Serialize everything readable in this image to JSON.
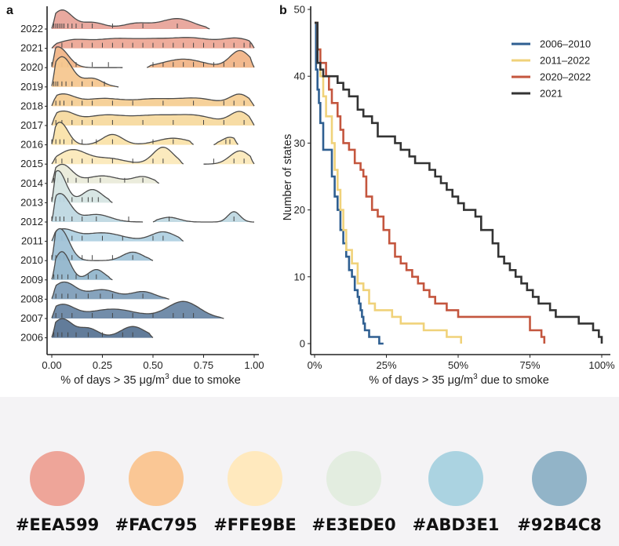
{
  "chart_data": [
    {
      "panel_label": "a",
      "type": "ridgeline",
      "xlabel_pre": "% of days > 35 ",
      "xlabel_mu": "μg/m",
      "xlabel_sup": "3",
      "xlabel_post": " due to smoke",
      "xlim": [
        0,
        1
      ],
      "x_ticks": [
        0,
        0.25,
        0.5,
        0.75,
        1
      ],
      "x_tick_labels": [
        "0.00",
        "0.25",
        "0.50",
        "0.75",
        "1.00"
      ],
      "series": [
        {
          "year": "2022",
          "color": "#E8A49A",
          "peaks": [
            [
              0.05,
              1.0,
              0.05
            ],
            [
              0.2,
              0.35,
              0.06
            ],
            [
              0.42,
              0.3,
              0.07
            ],
            [
              0.62,
              0.55,
              0.08
            ]
          ],
          "range": [
            0,
            0.78
          ],
          "ticks": [
            0.01,
            0.02,
            0.03,
            0.04,
            0.05,
            0.06,
            0.08,
            0.1,
            0.12,
            0.15,
            0.2,
            0.3,
            0.45,
            0.62
          ]
        },
        {
          "year": "2021",
          "color": "#EDA896",
          "peaks": [
            [
              0.1,
              0.4,
              0.08
            ],
            [
              0.3,
              0.45,
              0.1
            ],
            [
              0.5,
              0.4,
              0.1
            ],
            [
              0.7,
              0.5,
              0.1
            ],
            [
              0.92,
              0.5,
              0.08
            ]
          ],
          "range": [
            0,
            1
          ],
          "ticks": [
            0.05,
            0.1,
            0.15,
            0.2,
            0.25,
            0.3,
            0.35,
            0.4,
            0.45,
            0.5,
            0.55,
            0.6,
            0.65,
            0.7,
            0.75,
            0.8,
            0.85,
            0.9,
            0.95,
            0.98
          ]
        },
        {
          "year": "2020",
          "color": "#F1B588",
          "peaks": [
            [
              0.03,
              1.1,
              0.05
            ],
            [
              0.65,
              0.45,
              0.1
            ],
            [
              0.93,
              0.9,
              0.05
            ]
          ],
          "range": [
            0,
            1
          ],
          "gap": [
            0.35,
            0.47
          ],
          "ticks": [
            0.0,
            0.02,
            0.05,
            0.08,
            0.12,
            0.2,
            0.28,
            0.5,
            0.55,
            0.6,
            0.65,
            0.7,
            0.75,
            0.8,
            0.85,
            0.9,
            0.95
          ]
        },
        {
          "year": "2019",
          "color": "#F6C790",
          "peaks": [
            [
              0.05,
              1.6,
              0.05
            ],
            [
              0.2,
              0.45,
              0.05
            ]
          ],
          "range": [
            0,
            0.33
          ],
          "ticks": [
            0.01,
            0.02,
            0.03,
            0.05,
            0.07,
            0.1,
            0.15,
            0.2,
            0.26
          ]
        },
        {
          "year": "2018",
          "color": "#F6CF95",
          "peaks": [
            [
              0.05,
              0.6,
              0.06
            ],
            [
              0.25,
              0.4,
              0.1
            ],
            [
              0.5,
              0.35,
              0.1
            ],
            [
              0.72,
              0.4,
              0.1
            ],
            [
              0.93,
              0.6,
              0.05
            ]
          ],
          "range": [
            0,
            1
          ],
          "ticks": [
            0.02,
            0.04,
            0.06,
            0.1,
            0.15,
            0.2,
            0.3,
            0.4,
            0.55,
            0.7,
            0.85,
            0.9,
            0.95
          ]
        },
        {
          "year": "2017",
          "color": "#F7DAA0",
          "peaks": [
            [
              0.05,
              0.7,
              0.06
            ],
            [
              0.25,
              0.5,
              0.1
            ],
            [
              0.5,
              0.5,
              0.12
            ],
            [
              0.72,
              0.45,
              0.1
            ],
            [
              0.93,
              0.7,
              0.05
            ]
          ],
          "range": [
            0,
            1
          ],
          "ticks": [
            0.02,
            0.05,
            0.1,
            0.15,
            0.2,
            0.3,
            0.45,
            0.6,
            0.75,
            0.85,
            0.95
          ]
        },
        {
          "year": "2016",
          "color": "#FAE3AA",
          "peaks": [
            [
              0.04,
              1.2,
              0.04
            ],
            [
              0.3,
              0.55,
              0.05
            ],
            [
              0.6,
              0.35,
              0.08
            ],
            [
              0.88,
              0.4,
              0.04
            ]
          ],
          "range": [
            0,
            0.92
          ],
          "gap": [
            0.7,
            0.8
          ],
          "ticks": [
            0.0,
            0.02,
            0.04,
            0.06,
            0.1,
            0.15,
            0.22,
            0.3,
            0.5,
            0.6,
            0.86,
            0.88
          ]
        },
        {
          "year": "2015",
          "color": "#FBE9BA",
          "peaks": [
            [
              0.1,
              0.75,
              0.07
            ],
            [
              0.28,
              0.3,
              0.08
            ],
            [
              0.55,
              0.9,
              0.05
            ],
            [
              0.93,
              0.7,
              0.05
            ]
          ],
          "range": [
            0,
            1
          ],
          "gap": [
            0.65,
            0.75
          ],
          "ticks": [
            0.02,
            0.05,
            0.1,
            0.15,
            0.2,
            0.3,
            0.4,
            0.5,
            0.55,
            0.8,
            0.9,
            0.95
          ]
        },
        {
          "year": "2014",
          "color": "#EAEBDA",
          "peaks": [
            [
              0.05,
              1.0,
              0.05
            ],
            [
              0.25,
              0.4,
              0.08
            ],
            [
              0.45,
              0.35,
              0.05
            ]
          ],
          "range": [
            0,
            0.53
          ],
          "ticks": [
            0.01,
            0.03,
            0.05,
            0.08,
            0.12,
            0.18,
            0.24,
            0.36,
            0.45
          ]
        },
        {
          "year": "2013",
          "color": "#D6E5E3",
          "peaks": [
            [
              0.03,
              1.7,
              0.04
            ],
            [
              0.2,
              0.7,
              0.05
            ]
          ],
          "range": [
            0,
            0.3
          ],
          "ticks": [
            0.0,
            0.02,
            0.04,
            0.06,
            0.1,
            0.15,
            0.18,
            0.2,
            0.23
          ]
        },
        {
          "year": "2012",
          "color": "#BFD8E2",
          "peaks": [
            [
              0.04,
              1.5,
              0.05
            ],
            [
              0.22,
              0.4,
              0.07
            ],
            [
              0.58,
              0.25,
              0.05
            ],
            [
              0.9,
              0.55,
              0.03
            ]
          ],
          "range": [
            0,
            1
          ],
          "gap": [
            0.45,
            0.5
          ],
          "ticks": [
            0.0,
            0.02,
            0.04,
            0.06,
            0.1,
            0.15,
            0.22,
            0.38,
            0.58,
            0.9
          ]
        },
        {
          "year": "2011",
          "color": "#B0D1E1",
          "peaks": [
            [
              0.05,
              0.6,
              0.06
            ],
            [
              0.25,
              0.45,
              0.1
            ],
            [
              0.55,
              0.5,
              0.06
            ]
          ],
          "range": [
            0,
            0.65
          ],
          "ticks": [
            0.02,
            0.05,
            0.1,
            0.15,
            0.25,
            0.35,
            0.5,
            0.55
          ]
        },
        {
          "year": "2010",
          "color": "#A1C3D7",
          "peaks": [
            [
              0.04,
              1.7,
              0.045
            ],
            [
              0.4,
              0.45,
              0.05
            ]
          ],
          "range": [
            0,
            0.5
          ],
          "ticks": [
            0.0,
            0.02,
            0.04,
            0.06,
            0.1,
            0.15,
            0.2,
            0.3,
            0.4
          ]
        },
        {
          "year": "2009",
          "color": "#92B6CC",
          "peaks": [
            [
              0.05,
              1.5,
              0.04
            ],
            [
              0.22,
              0.55,
              0.04
            ]
          ],
          "range": [
            0,
            0.3
          ],
          "ticks": [
            0.01,
            0.03,
            0.05,
            0.08,
            0.12,
            0.18,
            0.22
          ]
        },
        {
          "year": "2008",
          "color": "#7F9EB9",
          "peaks": [
            [
              0.06,
              0.9,
              0.06
            ],
            [
              0.25,
              0.5,
              0.07
            ],
            [
              0.45,
              0.4,
              0.06
            ]
          ],
          "range": [
            0,
            0.58
          ],
          "ticks": [
            0.02,
            0.05,
            0.08,
            0.12,
            0.18,
            0.24,
            0.3,
            0.45
          ]
        },
        {
          "year": "2007",
          "color": "#6A87A5",
          "peaks": [
            [
              0.05,
              0.7,
              0.06
            ],
            [
              0.3,
              0.5,
              0.12
            ],
            [
              0.65,
              0.9,
              0.08
            ]
          ],
          "range": [
            0,
            0.85
          ],
          "ticks": [
            0.02,
            0.05,
            0.1,
            0.2,
            0.3,
            0.4,
            0.5,
            0.6,
            0.65,
            0.7
          ]
        },
        {
          "year": "2006",
          "color": "#5A7595",
          "peaks": [
            [
              0.05,
              1.0,
              0.05
            ],
            [
              0.18,
              0.5,
              0.05
            ],
            [
              0.4,
              0.6,
              0.06
            ]
          ],
          "range": [
            0,
            0.5
          ],
          "ticks": [
            0.01,
            0.03,
            0.05,
            0.08,
            0.12,
            0.18,
            0.25,
            0.35,
            0.4
          ]
        }
      ]
    },
    {
      "panel_label": "b",
      "type": "step",
      "xlabel_pre": "% of days > 35 ",
      "xlabel_mu": "μg/m",
      "xlabel_sup": "3",
      "xlabel_post": " due to smoke",
      "ylabel": "Number of states",
      "xlim": [
        0,
        1
      ],
      "ylim": [
        0,
        50
      ],
      "x_ticks": [
        0,
        0.25,
        0.5,
        0.75,
        1
      ],
      "x_tick_labels": [
        "0%",
        "25%",
        "50%",
        "75%",
        "100%"
      ],
      "y_ticks": [
        0,
        10,
        20,
        30,
        40,
        50
      ],
      "y_tick_labels": [
        "0",
        "10",
        "20",
        "30",
        "40",
        "50"
      ],
      "series": [
        {
          "name": "2006–2010",
          "color": "#2F5F91",
          "x": [
            0.0,
            0.005,
            0.01,
            0.015,
            0.02,
            0.03,
            0.04,
            0.06,
            0.07,
            0.08,
            0.09,
            0.1,
            0.11,
            0.12,
            0.13,
            0.14,
            0.15,
            0.155,
            0.16,
            0.165,
            0.17,
            0.175,
            0.18,
            0.19,
            0.2,
            0.21,
            0.225,
            0.24
          ],
          "y": [
            48,
            41,
            38,
            36,
            33,
            29,
            29,
            25,
            22,
            20,
            17,
            15,
            13,
            11,
            10,
            8,
            7,
            6,
            5,
            4,
            3,
            2,
            2,
            1,
            1,
            1,
            0,
            0
          ]
        },
        {
          "name": "2011–2022",
          "color": "#F0D27A",
          "x": [
            0.0,
            0.01,
            0.02,
            0.03,
            0.04,
            0.06,
            0.07,
            0.08,
            0.09,
            0.1,
            0.11,
            0.13,
            0.15,
            0.17,
            0.19,
            0.21,
            0.24,
            0.27,
            0.3,
            0.35,
            0.38,
            0.42,
            0.46,
            0.5,
            0.51
          ],
          "y": [
            48,
            44,
            40,
            37,
            34,
            30,
            26,
            23,
            20,
            17,
            14,
            12,
            9,
            8,
            6,
            5,
            5,
            4,
            3,
            3,
            2,
            2,
            1,
            1,
            0
          ]
        },
        {
          "name": "2020–2022",
          "color": "#C4563E",
          "x": [
            0.0,
            0.01,
            0.02,
            0.04,
            0.05,
            0.06,
            0.08,
            0.09,
            0.1,
            0.12,
            0.14,
            0.16,
            0.17,
            0.18,
            0.2,
            0.22,
            0.24,
            0.26,
            0.28,
            0.3,
            0.32,
            0.34,
            0.36,
            0.38,
            0.4,
            0.42,
            0.44,
            0.46,
            0.48,
            0.5,
            0.54,
            0.56,
            0.7,
            0.75,
            0.79,
            0.8
          ],
          "y": [
            48,
            44,
            42,
            40,
            38,
            36,
            34,
            32,
            30,
            29,
            27,
            26,
            25,
            22,
            20,
            19,
            17,
            15,
            13,
            12,
            11,
            10,
            9,
            8,
            7,
            6,
            6,
            5,
            5,
            4,
            4,
            4,
            4,
            2,
            1,
            0
          ]
        },
        {
          "name": "2021",
          "color": "#333333",
          "x": [
            0.0,
            0.01,
            0.02,
            0.03,
            0.06,
            0.08,
            0.1,
            0.12,
            0.15,
            0.17,
            0.2,
            0.22,
            0.25,
            0.28,
            0.3,
            0.33,
            0.35,
            0.38,
            0.4,
            0.42,
            0.44,
            0.46,
            0.48,
            0.5,
            0.52,
            0.54,
            0.56,
            0.58,
            0.62,
            0.64,
            0.66,
            0.68,
            0.7,
            0.72,
            0.74,
            0.76,
            0.78,
            0.8,
            0.82,
            0.84,
            0.88,
            0.92,
            0.97,
            0.99,
            1.0
          ],
          "y": [
            48,
            42,
            41,
            40,
            40,
            39,
            38,
            37,
            35,
            34,
            33,
            31,
            31,
            30,
            29,
            28,
            27,
            27,
            26,
            25,
            24,
            23,
            22,
            21,
            20,
            20,
            19,
            17,
            15,
            13,
            12,
            11,
            10,
            9,
            8,
            7,
            6,
            6,
            5,
            4,
            4,
            3,
            2,
            1,
            0
          ]
        }
      ]
    }
  ],
  "palette": {
    "swatches": [
      {
        "color": "#EEA599",
        "label": "#EEA599"
      },
      {
        "color": "#FAC795",
        "label": "#FAC795"
      },
      {
        "color": "#FFE9BE",
        "label": "#FFE9BE"
      },
      {
        "color": "#E3EDE0",
        "label": "#E3EDE0"
      },
      {
        "color": "#ABD3E1",
        "label": "#ABD3E1"
      },
      {
        "color": "#92B4C8",
        "label": "#92B4C8"
      }
    ]
  }
}
